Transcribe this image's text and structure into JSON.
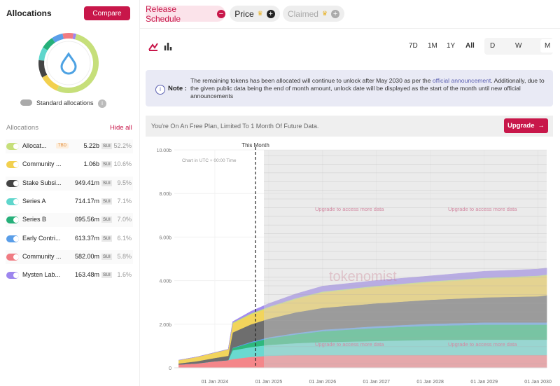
{
  "sidebar": {
    "title": "Allocations",
    "compare": "Compare",
    "toggle_label": "Standard allocations",
    "list_header": "Allocations",
    "hide_all": "Hide all",
    "unit": "SUI"
  },
  "tabs": {
    "release": "Release Schedule",
    "price": "Price",
    "claimed": "Claimed"
  },
  "ranges": [
    "7D",
    "1M",
    "1Y",
    "All"
  ],
  "granularity": [
    "D",
    "W",
    "M"
  ],
  "note": {
    "label": "Note :",
    "text": "The remaining tokens has been allocated will continue to unlock after May 2030 as per the ",
    "link": "official announcement",
    "text_after": ". Additionally, due to the given public data being the end of month amount, unlock date will be displayed as the start of the month until new official announcements"
  },
  "banner": {
    "text": "You're On An Free Plan, Limited To 1 Month Of Future Data.",
    "button": "Upgrade"
  },
  "chart_data": [
    {
      "type": "donut",
      "categories": [
        "Allocat...",
        "Community ...",
        "Stake Subsi...",
        "Series A",
        "Series B",
        "Early Contri...",
        "Community ...",
        "Mysten Lab..."
      ],
      "tags": [
        "TBD",
        null,
        null,
        null,
        null,
        null,
        null,
        null
      ],
      "amounts": [
        "5.22b",
        "1.06b",
        "949.41m",
        "714.17m",
        "695.56m",
        "613.37m",
        "582.00m",
        "163.48m"
      ],
      "values": [
        52.2,
        10.6,
        9.5,
        7.1,
        7.0,
        6.1,
        5.8,
        1.6
      ],
      "value_labels": [
        "52.2%",
        "10.6%",
        "9.5%",
        "7.1%",
        "7.0%",
        "6.1%",
        "5.8%",
        "1.6%"
      ],
      "colors": [
        "#c6df7a",
        "#f2d04e",
        "#444444",
        "#5fd6cc",
        "#26b07a",
        "#5a9ee8",
        "#f07b82",
        "#9d86ee"
      ]
    },
    {
      "type": "area",
      "stacked": true,
      "x": [
        "2023-05-01",
        "2023-09-01",
        "2024-01-01",
        "2024-04-01",
        "2024-05-01",
        "2024-09-01",
        "2025-01-01",
        "2025-07-01",
        "2026-01-01",
        "2027-01-01",
        "2028-01-01",
        "2029-01-01",
        "2030-01-01",
        "2030-03-01"
      ],
      "xlim": [
        "2023-04-01",
        "2030-03-01"
      ],
      "xticks": [
        {
          "value": "2024-01-01",
          "label": "01 Jan 2024"
        },
        {
          "value": "2025-01-01",
          "label": "01 Jan 2025"
        },
        {
          "value": "2026-01-01",
          "label": "01 Jan 2026"
        },
        {
          "value": "2027-01-01",
          "label": "01 Jan 2027"
        },
        {
          "value": "2028-01-01",
          "label": "01 Jan 2028"
        },
        {
          "value": "2029-01-01",
          "label": "01 Jan 2029"
        },
        {
          "value": "2030-01-01",
          "label": "01 Jan 2030"
        }
      ],
      "ylim": [
        0,
        10
      ],
      "yticks": [
        0,
        {
          "value": 2,
          "label": "2.00b"
        },
        {
          "value": 4,
          "label": "4.00b"
        },
        {
          "value": 6,
          "label": "6.00b"
        },
        {
          "value": 8,
          "label": "8.00b"
        },
        {
          "value": 10,
          "label": "10.00b"
        }
      ],
      "series": [
        {
          "color": "#f4868a",
          "values": [
            0.15,
            0.2,
            0.3,
            0.35,
            0.4,
            0.5,
            0.55,
            0.58,
            0.58,
            0.58,
            0.58,
            0.58,
            0.58,
            0.58
          ]
        },
        {
          "color": "#6ad9d0",
          "values": [
            0,
            0,
            0,
            0,
            0.4,
            0.45,
            0.5,
            0.55,
            0.6,
            0.65,
            0.7,
            0.71,
            0.71,
            0.71
          ]
        },
        {
          "color": "#2fb87d",
          "values": [
            0,
            0,
            0,
            0,
            0.1,
            0.2,
            0.3,
            0.4,
            0.5,
            0.6,
            0.65,
            0.69,
            0.69,
            0.69
          ]
        },
        {
          "color": "#5f9fe8",
          "values": [
            0,
            0,
            0,
            0,
            0.02,
            0.04,
            0.05,
            0.06,
            0.07,
            0.08,
            0.09,
            0.1,
            0.1,
            0.1
          ]
        },
        {
          "color": "#6e6e6e",
          "values": [
            0.05,
            0.1,
            0.15,
            0.2,
            0.7,
            0.8,
            0.85,
            0.95,
            1.0,
            1.05,
            1.1,
            1.15,
            1.2,
            1.25
          ]
        },
        {
          "color": "#f2d45c",
          "values": [
            0.15,
            0.2,
            0.25,
            0.3,
            0.4,
            0.45,
            0.5,
            0.6,
            0.7,
            0.75,
            0.8,
            0.85,
            0.9,
            0.9
          ]
        },
        {
          "color": "#c6df7a",
          "values": [
            0,
            0,
            0,
            0,
            0.05,
            0.05,
            0.05,
            0.05,
            0.05,
            0.05,
            0.05,
            0.05,
            0.05,
            0.05
          ]
        },
        {
          "color": "#a38df0",
          "values": [
            0,
            0,
            0,
            0,
            0.05,
            0.1,
            0.15,
            0.2,
            0.25,
            0.25,
            0.25,
            0.3,
            0.3,
            0.3
          ]
        }
      ],
      "marker_label": "This Month",
      "timezone_note": "Chart in UTC + 00:00 Time",
      "upgrade_notice": "Upgrade to access more data",
      "watermark": "tokenomist"
    }
  ]
}
